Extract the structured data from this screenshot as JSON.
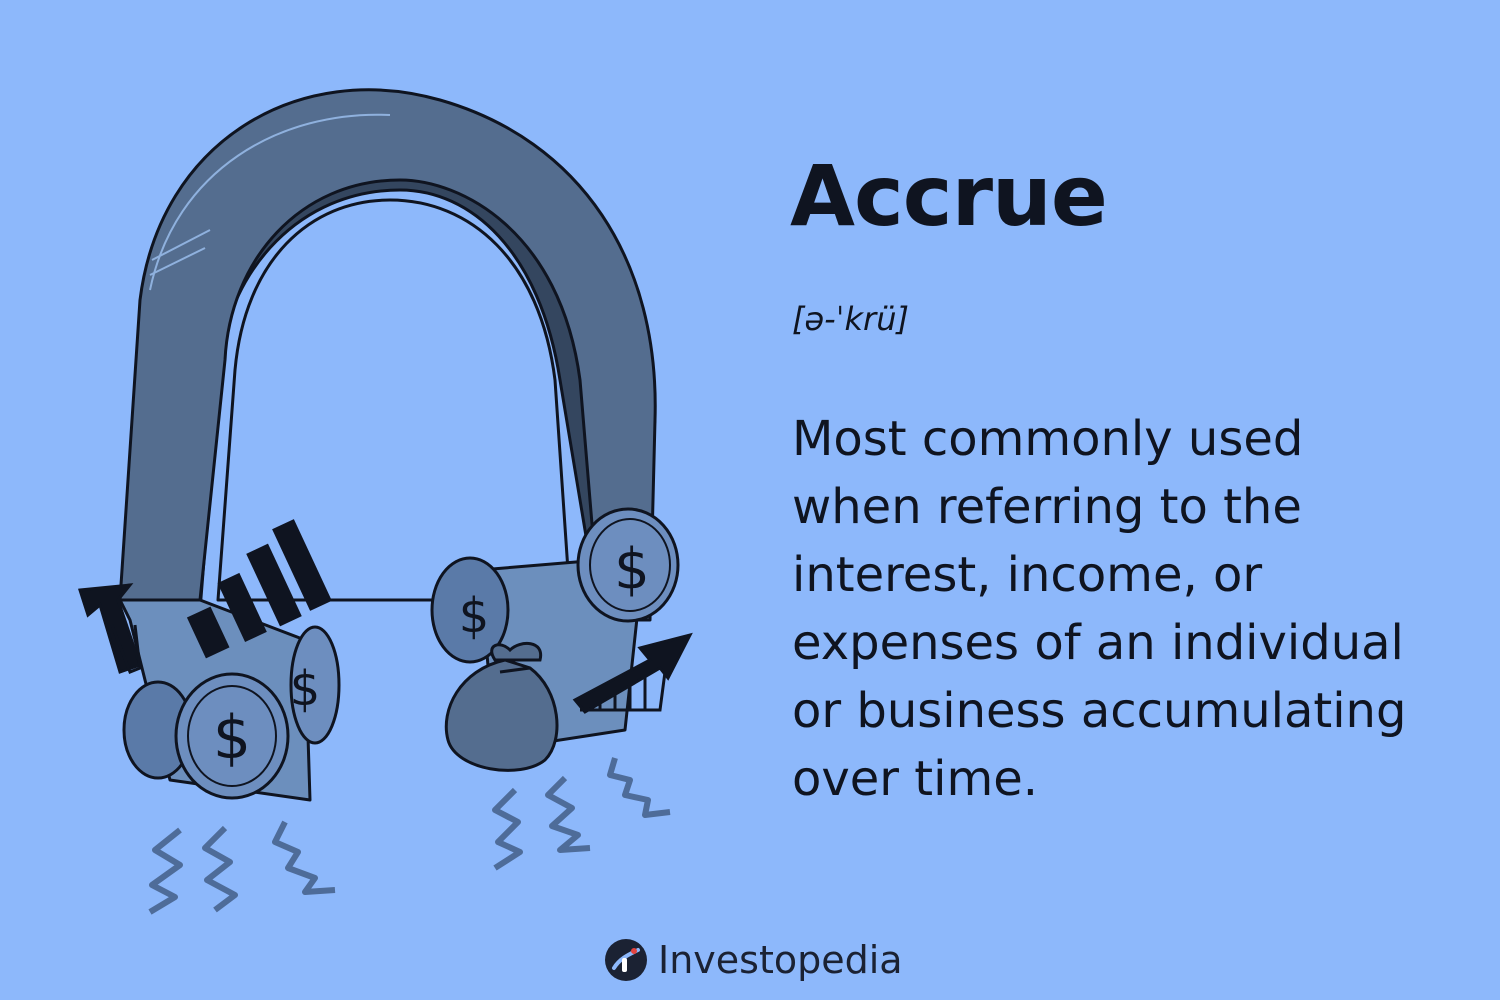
{
  "term": {
    "title": "Accrue",
    "pronunciation": "[ə-ˈkrü]",
    "definition": "Most commonly used when referring to the interest, income, or expenses of an individual or business accumulating over time."
  },
  "brand": {
    "name": "Investopedia",
    "icon": "investopedia-logo-icon",
    "color": "#1b2233"
  },
  "illustration": {
    "subject": "magnet-icon",
    "symbols": [
      "dollar-coin-icon",
      "money-bag-icon",
      "growth-bars-icon",
      "up-arrow-icon"
    ],
    "dollar_glyph": "$"
  },
  "colors": {
    "background": "#8db8fb",
    "magnet": "#546d8f",
    "magnet_shadow": "#34465f",
    "pole": "#6c8fbd",
    "coin": "#6d8ebf",
    "ink": "#0f1420",
    "squiggle": "#4e6c99"
  }
}
